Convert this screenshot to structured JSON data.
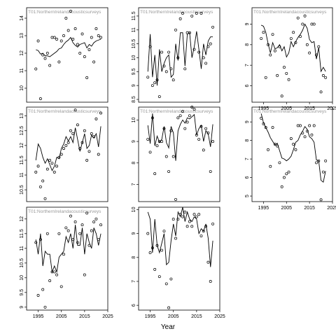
{
  "figure": {
    "xlabel": "Year"
  },
  "chart_data": [
    {
      "type": "scatter",
      "title": "T01:NorthernIrelandacousticsurveys",
      "xlim": [
        1990,
        2025
      ],
      "ylim": [
        9.2,
        14.6
      ],
      "yticks": [
        10,
        11,
        12,
        13,
        14
      ],
      "xticks": [],
      "x": [
        1994,
        1995,
        1996,
        1997,
        1998,
        1999,
        2000,
        2001,
        2002,
        2003,
        2004,
        2005,
        2006,
        2007,
        2008,
        2009,
        2010,
        2011,
        2012,
        2013,
        2014,
        2015,
        2016,
        2017,
        2018,
        2019,
        2020,
        2021,
        2022
      ],
      "points": [
        11.1,
        12.7,
        9.4,
        11.9,
        11.7,
        12.0,
        11.3,
        12.9,
        12.9,
        12.8,
        11.5,
        12.7,
        13.0,
        14.0,
        13.3,
        14.4,
        12.8,
        13.4,
        12.5,
        12.0,
        13.1,
        11.8,
        10.6,
        12.2,
        12.9,
        11.5,
        13.4,
        13.0,
        12.9
      ],
      "line": [
        12.2,
        12.15,
        11.95,
        12.0,
        11.85,
        11.85,
        11.8,
        11.9,
        12.0,
        12.1,
        12.25,
        12.3,
        12.5,
        12.65,
        12.75,
        12.9,
        12.6,
        12.45,
        12.35,
        12.5,
        12.55,
        12.6,
        12.3,
        12.5,
        12.4,
        12.6,
        12.7,
        12.75,
        12.8
      ]
    },
    {
      "type": "scatter",
      "title": "T01:NorthernIrelandacousticsurveys",
      "xlim": [
        1990,
        2025
      ],
      "ylim": [
        8.4,
        11.8
      ],
      "yticks": [
        8.5,
        9.0,
        9.5,
        10.0,
        10.5,
        11.0,
        11.5
      ],
      "xticks": [],
      "x": [
        1994,
        1995,
        1996,
        1997,
        1998,
        1999,
        2000,
        2001,
        2002,
        2003,
        2004,
        2005,
        2006,
        2007,
        2008,
        2009,
        2010,
        2011,
        2012,
        2013,
        2014,
        2015,
        2016,
        2017,
        2018,
        2019,
        2020,
        2021,
        2022
      ],
      "points": [
        9.3,
        10.4,
        9.0,
        9.1,
        9.2,
        8.6,
        10.2,
        9.7,
        9.5,
        10.2,
        9.6,
        9.2,
        11.0,
        10.0,
        11.4,
        11.6,
        9.6,
        10.9,
        10.9,
        11.5,
        10.3,
        11.6,
        10.2,
        11.6,
        10.0,
        9.8,
        10.4,
        10.5,
        11.1
      ],
      "line": [
        9.5,
        10.85,
        9.3,
        10.1,
        9.0,
        10.3,
        9.5,
        9.8,
        10.0,
        10.1,
        9.3,
        9.4,
        10.5,
        9.9,
        10.9,
        10.9,
        9.7,
        10.85,
        10.9,
        10.0,
        10.4,
        10.95,
        10.3,
        9.6,
        10.5,
        10.1,
        10.6,
        10.75,
        10.75
      ]
    },
    {
      "type": "scatter",
      "title": "T01:NorthernIrelandacousticsurveys",
      "xlim": [
        1990,
        2025
      ],
      "ylim": [
        5.2,
        9.8
      ],
      "yticks": [
        6,
        7,
        8,
        9
      ],
      "xticks": [
        1995,
        2005,
        2015,
        2025
      ],
      "x": [
        1994,
        1995,
        1996,
        1997,
        1998,
        1999,
        2000,
        2001,
        2002,
        2003,
        2004,
        2005,
        2006,
        2007,
        2008,
        2009,
        2010,
        2011,
        2012,
        2013,
        2014,
        2015,
        2016,
        2017,
        2018,
        2019,
        2020,
        2021,
        2022
      ],
      "points": [
        8.3,
        8.6,
        6.4,
        8.0,
        7.5,
        8.5,
        7.7,
        6.5,
        7.9,
        5.5,
        6.9,
        6.6,
        6.3,
        8.3,
        8.6,
        8.1,
        9.3,
        8.4,
        9.0,
        9.4,
        8.0,
        7.6,
        9.0,
        9.0,
        7.5,
        7.9,
        5.7,
        6.5,
        6.4
      ],
      "line": [
        8.95,
        8.9,
        8.6,
        8.05,
        7.6,
        8.1,
        7.8,
        7.85,
        8.0,
        7.7,
        7.9,
        7.4,
        7.6,
        8.15,
        7.9,
        8.15,
        8.35,
        8.5,
        8.7,
        9.0,
        8.8,
        8.25,
        8.1,
        8.15,
        7.3,
        7.85,
        6.7,
        6.9,
        6.7
      ]
    },
    {
      "type": "scatter",
      "title": "T01:NorthernIrelandacousticsurveys",
      "xlim": [
        1990,
        2025
      ],
      "ylim": [
        10.1,
        13.3
      ],
      "yticks": [
        10.5,
        11.0,
        11.5,
        12.0,
        12.5,
        13.0
      ],
      "xticks": [],
      "x": [
        1994,
        1995,
        1996,
        1997,
        1998,
        1999,
        2000,
        2001,
        2002,
        2003,
        2004,
        2005,
        2006,
        2007,
        2008,
        2009,
        2010,
        2011,
        2012,
        2013,
        2014,
        2015,
        2016,
        2017,
        2018,
        2019,
        2020,
        2021,
        2022
      ],
      "points": [
        11.1,
        11.3,
        10.6,
        10.8,
        10.2,
        11.2,
        11.5,
        11.4,
        11.1,
        11.3,
        11.6,
        11.7,
        11.9,
        12.0,
        12.1,
        12.5,
        12.4,
        13.2,
        12.7,
        11.9,
        12.1,
        12.5,
        11.5,
        11.8,
        12.4,
        12.3,
        12.9,
        11.7,
        13.1
      ],
      "line": [
        11.5,
        12.05,
        11.9,
        11.6,
        11.4,
        11.55,
        11.35,
        11.15,
        11.3,
        11.6,
        11.55,
        11.9,
        12.05,
        12.3,
        12.15,
        12.3,
        12.1,
        12.6,
        12.2,
        11.8,
        12.1,
        12.4,
        11.9,
        12.0,
        12.35,
        12.25,
        12.4,
        11.95,
        12.65
      ]
    },
    {
      "type": "scatter",
      "title": "T01:NorthernIrelandacousticsurveys",
      "xlim": [
        1990,
        2025
      ],
      "ylim": [
        6.2,
        10.6
      ],
      "yticks": [
        7,
        8,
        9,
        10
      ],
      "xticks": [],
      "x": [
        1994,
        1995,
        1996,
        1997,
        1998,
        1999,
        2000,
        2001,
        2002,
        2003,
        2004,
        2005,
        2006,
        2007,
        2008,
        2009,
        2010,
        2011,
        2012,
        2013,
        2014,
        2015,
        2016,
        2017,
        2018,
        2019,
        2020,
        2021,
        2022
      ],
      "points": [
        9.1,
        8.5,
        10.1,
        7.5,
        8.8,
        9.0,
        9.0,
        9.6,
        8.3,
        7.6,
        9.5,
        8.3,
        6.3,
        10.1,
        10.2,
        10.4,
        9.6,
        9.9,
        10.2,
        10.6,
        10.5,
        9.3,
        9.1,
        9.7,
        8.6,
        9.6,
        9.4,
        7.6,
        9.0
      ],
      "line": [
        9.75,
        8.9,
        10.3,
        8.8,
        9.25,
        8.95,
        9.1,
        9.7,
        8.95,
        8.7,
        9.7,
        9.4,
        8.1,
        9.5,
        9.8,
        10.0,
        9.85,
        10.1,
        10.05,
        10.15,
        10.25,
        9.3,
        9.6,
        9.75,
        9.0,
        9.5,
        9.35,
        8.75,
        9.8
      ]
    },
    {
      "type": "scatter",
      "title": "T01:NorthernIrelandacousticsurveys",
      "xlim": [
        1990,
        2025
      ],
      "ylim": [
        4.7,
        9.8
      ],
      "yticks": [
        5,
        6,
        7,
        8,
        9
      ],
      "xticks": [
        1995,
        2005,
        2015,
        2025
      ],
      "x": [
        1994,
        1995,
        1996,
        1997,
        1998,
        1999,
        2000,
        2001,
        2002,
        2003,
        2004,
        2005,
        2006,
        2007,
        2008,
        2009,
        2010,
        2011,
        2012,
        2013,
        2014,
        2015,
        2016,
        2017,
        2018,
        2019,
        2020,
        2021,
        2022
      ],
      "points": [
        9.2,
        8.9,
        8.7,
        7.5,
        6.6,
        8.7,
        7.8,
        7.7,
        6.8,
        5.5,
        6.0,
        6.2,
        6.3,
        8.1,
        7.8,
        7.5,
        8.8,
        8.8,
        8.4,
        8.2,
        8.5,
        8.8,
        8.3,
        8.8,
        6.8,
        6.9,
        4.8,
        6.3,
        6.9
      ],
      "line": [
        9.45,
        8.95,
        8.7,
        8.45,
        8.15,
        7.95,
        7.75,
        7.85,
        7.45,
        7.05,
        7.0,
        6.9,
        7.0,
        7.15,
        7.5,
        7.9,
        8.0,
        8.3,
        8.5,
        8.75,
        8.6,
        8.2,
        8.1,
        7.9,
        6.95,
        6.9,
        5.85,
        5.75,
        6.35
      ]
    },
    {
      "type": "scatter",
      "title": "T01:NorthernIrelandacousticsurveys",
      "xlim": [
        1990,
        2025
      ],
      "ylim": [
        8.9,
        12.4
      ],
      "yticks": [
        9.0,
        9.5,
        10.0,
        10.5,
        11.0,
        11.5,
        12.0
      ],
      "xticks": [
        1995,
        2005,
        2015,
        2025
      ],
      "x": [
        1994,
        1995,
        1996,
        1997,
        1998,
        1999,
        2000,
        2001,
        2002,
        2003,
        2004,
        2005,
        2006,
        2007,
        2008,
        2009,
        2010,
        2011,
        2012,
        2013,
        2014,
        2015,
        2016,
        2017,
        2018,
        2019,
        2020,
        2021,
        2022
      ],
      "points": [
        11.2,
        9.4,
        11.3,
        9.6,
        9.0,
        11.5,
        9.9,
        10.2,
        10.2,
        10.1,
        11.5,
        9.7,
        10.8,
        11.7,
        11.6,
        12.1,
        11.3,
        11.9,
        11.2,
        11.5,
        11.8,
        10.1,
        12.2,
        11.1,
        11.6,
        11.9,
        12.0,
        11.3,
        11.8
      ],
      "line": [
        11.3,
        10.8,
        11.5,
        10.4,
        10.9,
        10.8,
        10.8,
        10.2,
        10.4,
        10.2,
        10.7,
        10.8,
        10.9,
        11.4,
        11.2,
        11.5,
        11.0,
        11.8,
        11.1,
        11.1,
        11.7,
        10.8,
        11.5,
        11.2,
        11.0,
        11.7,
        11.5,
        11.1,
        11.5
      ]
    },
    {
      "type": "scatter",
      "title": "",
      "xlim": [
        1990,
        2025
      ],
      "ylim": [
        5.8,
        10.1
      ],
      "yticks": [
        6,
        7,
        8,
        9,
        10
      ],
      "xticks": [
        1995,
        2005,
        2015,
        2025
      ],
      "x": [
        1994,
        1995,
        1996,
        1997,
        1998,
        1999,
        2000,
        2001,
        2002,
        2003,
        2004,
        2005,
        2006,
        2007,
        2008,
        2009,
        2010,
        2011,
        2012,
        2013,
        2014,
        2015,
        2016,
        2017,
        2018,
        2019,
        2020,
        2021,
        2022
      ],
      "points": [
        9.0,
        8.2,
        8.4,
        7.5,
        8.5,
        7.2,
        8.3,
        9.1,
        6.9,
        5.9,
        7.1,
        9.6,
        8.8,
        9.6,
        9.8,
        9.7,
        9.9,
        9.3,
        9.5,
        9.3,
        9.8,
        9.7,
        9.8,
        8.9,
        9.1,
        9.3,
        7.8,
        7.0,
        9.4
      ],
      "line": [
        9.9,
        9.6,
        8.2,
        9.6,
        8.5,
        8.2,
        8.6,
        9.0,
        7.7,
        7.8,
        8.7,
        9.4,
        8.9,
        9.9,
        9.7,
        10.1,
        9.5,
        9.9,
        9.6,
        9.5,
        9.7,
        9.6,
        9.0,
        9.2,
        9.1,
        9.4,
        8.8,
        7.6,
        8.7
      ]
    }
  ]
}
